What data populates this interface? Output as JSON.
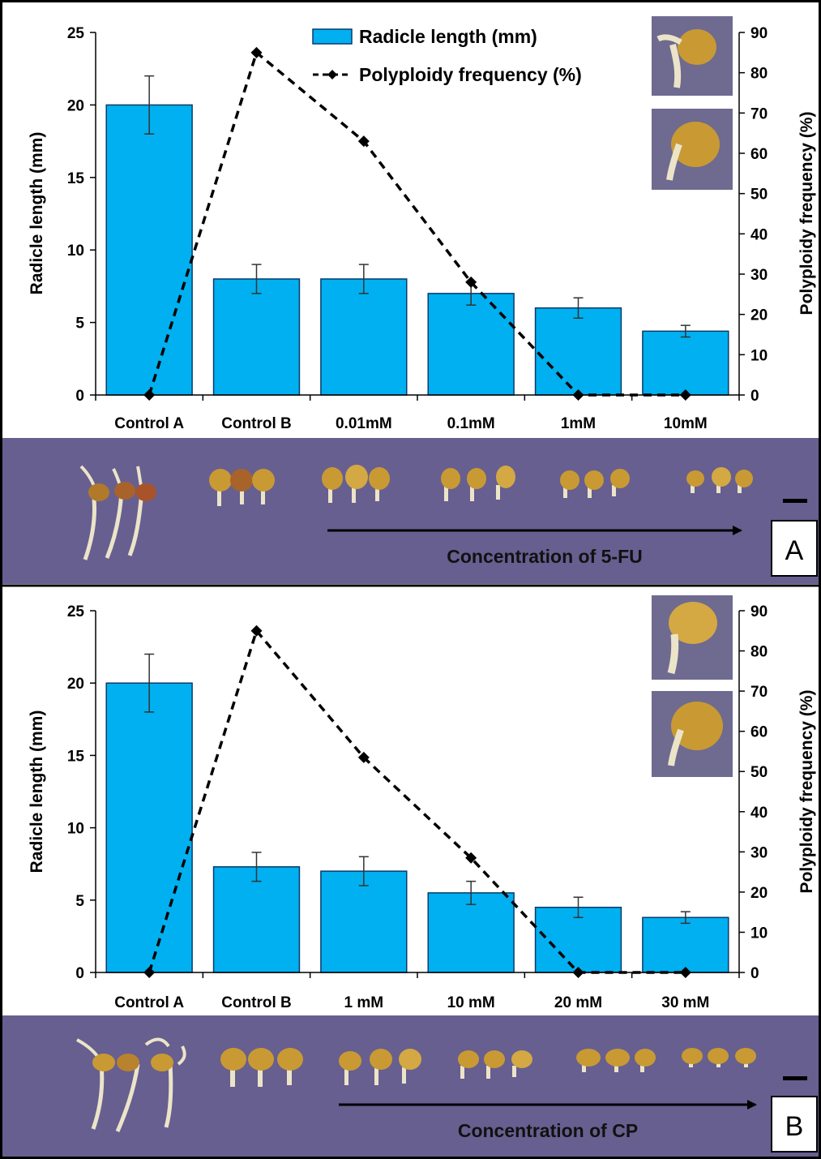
{
  "colors": {
    "bar": "#00b0f0",
    "bar_edge": "#0a3a6b",
    "line": "#000000",
    "photo_bg": "#675f90",
    "seed": "#c99a33",
    "radicle": "#ebe4c8"
  },
  "panels": [
    {
      "label": "A",
      "concentration_label": "Concentration of 5-FU",
      "legend": {
        "bar": "Radicle length (mm)",
        "line": "Polyploidy frequency (%)"
      }
    },
    {
      "label": "B",
      "concentration_label": "Concentration of CP",
      "legend": {
        "bar": "",
        "line": ""
      }
    }
  ],
  "chart_data": [
    {
      "type": "bar",
      "categories": [
        "Control A",
        "Control B",
        "0.01mM",
        "0.1mM",
        "1mM",
        "10mM"
      ],
      "series": [
        {
          "name": "Radicle length (mm)",
          "type": "bar",
          "axis": "left",
          "values": [
            20,
            8,
            8,
            7,
            6,
            4.4
          ],
          "errors": [
            2,
            1,
            1,
            0.8,
            0.7,
            0.4
          ]
        },
        {
          "name": "Polyploidy frequency (%)",
          "type": "line",
          "axis": "right",
          "values": [
            0,
            85,
            63,
            28,
            0,
            0
          ]
        }
      ],
      "ylabel": "Radicle length (mm)",
      "y2label": "Polyploidy frequency (%)",
      "ylim": [
        0,
        25
      ],
      "yticks": [
        0,
        5,
        10,
        15,
        20,
        25
      ],
      "y2lim": [
        0,
        90
      ],
      "y2ticks": [
        0,
        10,
        20,
        30,
        40,
        50,
        60,
        70,
        80,
        90
      ],
      "legend": "top-center",
      "grid": false
    },
    {
      "type": "bar",
      "categories": [
        "Control A",
        "Control B",
        "1 mM",
        "10 mM",
        "20 mM",
        "30 mM"
      ],
      "series": [
        {
          "name": "Radicle length (mm)",
          "type": "bar",
          "axis": "left",
          "values": [
            20,
            7.3,
            7,
            5.5,
            4.5,
            3.8
          ],
          "errors": [
            2,
            1,
            1,
            0.8,
            0.7,
            0.4
          ]
        },
        {
          "name": "Polyploidy frequency (%)",
          "type": "line",
          "axis": "right",
          "values": [
            0,
            85,
            53.5,
            28.5,
            0,
            0
          ]
        }
      ],
      "ylabel": "Radicle length (mm)",
      "y2label": "Polyploidy frequency (%)",
      "ylim": [
        0,
        25
      ],
      "yticks": [
        0,
        5,
        10,
        15,
        20,
        25
      ],
      "y2lim": [
        0,
        90
      ],
      "y2ticks": [
        0,
        10,
        20,
        30,
        40,
        50,
        60,
        70,
        80,
        90
      ],
      "legend": "none",
      "grid": false
    }
  ]
}
